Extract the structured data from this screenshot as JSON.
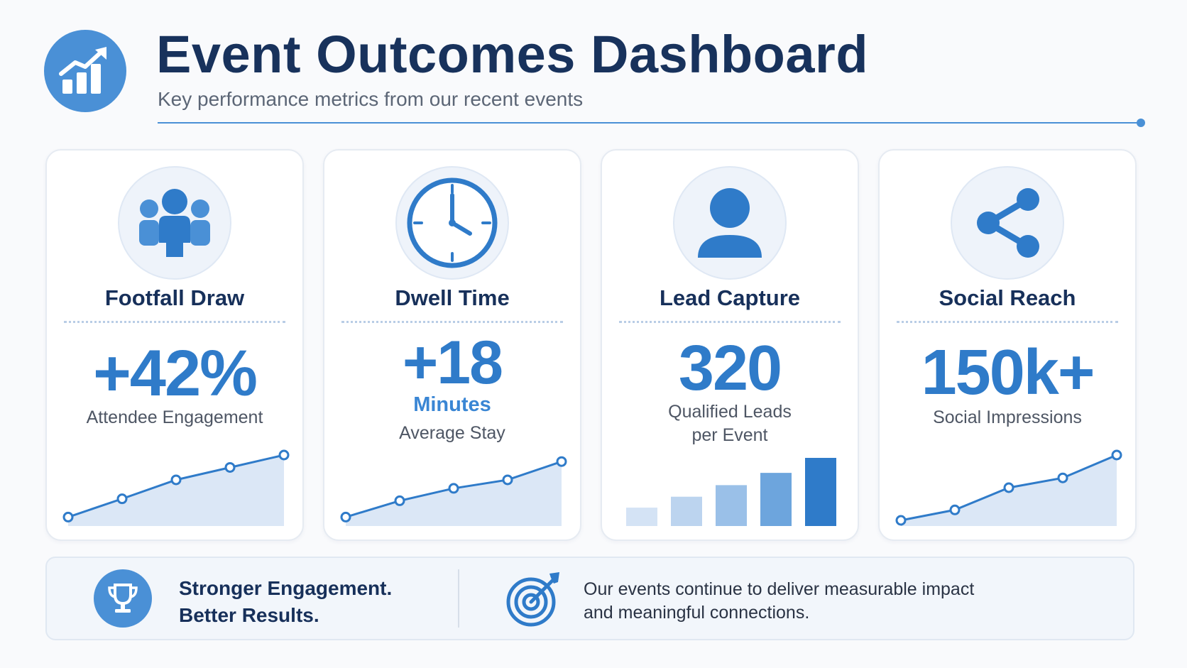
{
  "header": {
    "title": "Event Outcomes Dashboard",
    "subtitle": "Key performance metrics from our recent events",
    "logo_icon": "chart-growth-icon"
  },
  "colors": {
    "primary": "#2f7bc9",
    "accent": "#4a90d6",
    "title": "#18325c",
    "fill": "#dbe7f6"
  },
  "cards": [
    {
      "icon": "people-group-icon",
      "title": "Footfall Draw",
      "metric": "+42%",
      "unit": "",
      "description_lines": [
        "Attendee Engagement"
      ],
      "chart_type": "line",
      "trend": [
        0.05,
        0.33,
        0.62,
        0.81,
        1.0
      ]
    },
    {
      "icon": "clock-icon",
      "title": "Dwell Time",
      "metric": "+18",
      "unit": "Minutes",
      "description_lines": [
        "Average Stay"
      ],
      "chart_type": "line",
      "trend": [
        0.05,
        0.3,
        0.49,
        0.62,
        0.9
      ]
    },
    {
      "icon": "user-icon",
      "title": "Lead Capture",
      "metric": "320",
      "unit": "",
      "description_lines": [
        "Qualified Leads",
        "per Event"
      ],
      "chart_type": "bar",
      "trend": [
        0.27,
        0.43,
        0.6,
        0.78,
        1.0
      ]
    },
    {
      "icon": "share-icon",
      "title": "Social Reach",
      "metric": "150k+",
      "unit": "",
      "description_lines": [
        "Social Impressions"
      ],
      "chart_type": "line",
      "trend": [
        0.0,
        0.16,
        0.5,
        0.65,
        1.0
      ]
    }
  ],
  "banner": {
    "trophy_icon": "trophy-icon",
    "headline_line1": "Stronger Engagement.",
    "headline_line2": "Better Results.",
    "target_icon": "target-arrow-icon",
    "text_line1": "Our events continue to deliver measurable impact",
    "text_line2": "and meaningful connections."
  }
}
